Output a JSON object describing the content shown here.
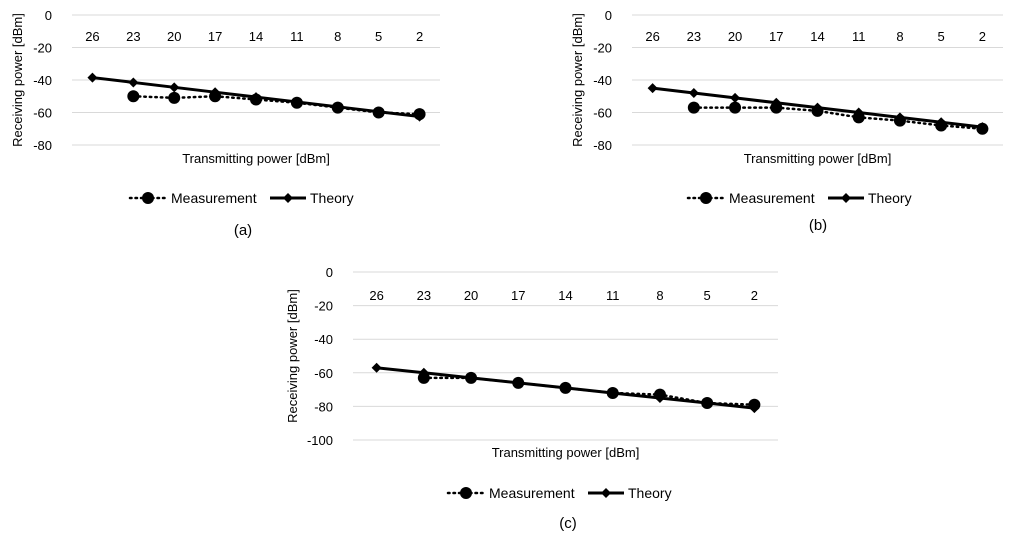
{
  "chart_data": [
    {
      "type": "line",
      "caption": "(a)",
      "xlabel": "Transmitting power [dBm]",
      "ylabel": "Receiving power [dBm]",
      "ylim": [
        -80,
        0
      ],
      "yticks": [
        0,
        -20,
        -40,
        -60,
        -80
      ],
      "categories": [
        "26",
        "23",
        "20",
        "17",
        "14",
        "11",
        "8",
        "5",
        "2"
      ],
      "legend_position": "bottom",
      "grid": true,
      "series": [
        {
          "name": "Measurement",
          "style": "dotted",
          "marker": "circle",
          "values": [
            null,
            -50,
            -51,
            -50,
            -52,
            -54,
            -57,
            -60,
            -61
          ]
        },
        {
          "name": "Theory",
          "style": "solid",
          "marker": "diamond",
          "values": [
            -38.5,
            -41.5,
            -44.5,
            -47.5,
            -50.5,
            -53.5,
            -56.5,
            -59.5,
            -62.5
          ]
        }
      ]
    },
    {
      "type": "line",
      "caption": "(b)",
      "xlabel": "Transmitting power [dBm]",
      "ylabel": "Receiving power [dBm]",
      "ylim": [
        -80,
        0
      ],
      "yticks": [
        0,
        -20,
        -40,
        -60,
        -80
      ],
      "categories": [
        "26",
        "23",
        "20",
        "17",
        "14",
        "11",
        "8",
        "5",
        "2"
      ],
      "legend_position": "bottom",
      "grid": true,
      "series": [
        {
          "name": "Measurement",
          "style": "dotted",
          "marker": "circle",
          "values": [
            null,
            -57,
            -57,
            -57,
            -59,
            -63,
            -65,
            -68,
            -70
          ]
        },
        {
          "name": "Theory",
          "style": "solid",
          "marker": "diamond",
          "values": [
            -45,
            -48,
            -51,
            -54,
            -57,
            -60,
            -63,
            -66,
            -69
          ]
        }
      ]
    },
    {
      "type": "line",
      "caption": "(c)",
      "xlabel": "Transmitting power [dBm]",
      "ylabel": "Receiving power [dBm]",
      "ylim": [
        -100,
        0
      ],
      "yticks": [
        0,
        -20,
        -40,
        -60,
        -80,
        -100
      ],
      "categories": [
        "26",
        "23",
        "20",
        "17",
        "14",
        "11",
        "8",
        "5",
        "2"
      ],
      "legend_position": "bottom",
      "grid": true,
      "series": [
        {
          "name": "Measurement",
          "style": "dotted",
          "marker": "circle",
          "values": [
            null,
            -63,
            -63,
            -66,
            -69,
            -72,
            -73,
            -78,
            -79
          ]
        },
        {
          "name": "Theory",
          "style": "solid",
          "marker": "diamond",
          "values": [
            -57,
            -60,
            -63,
            -66,
            -69,
            -72,
            -75,
            -78,
            -81
          ]
        }
      ]
    }
  ]
}
